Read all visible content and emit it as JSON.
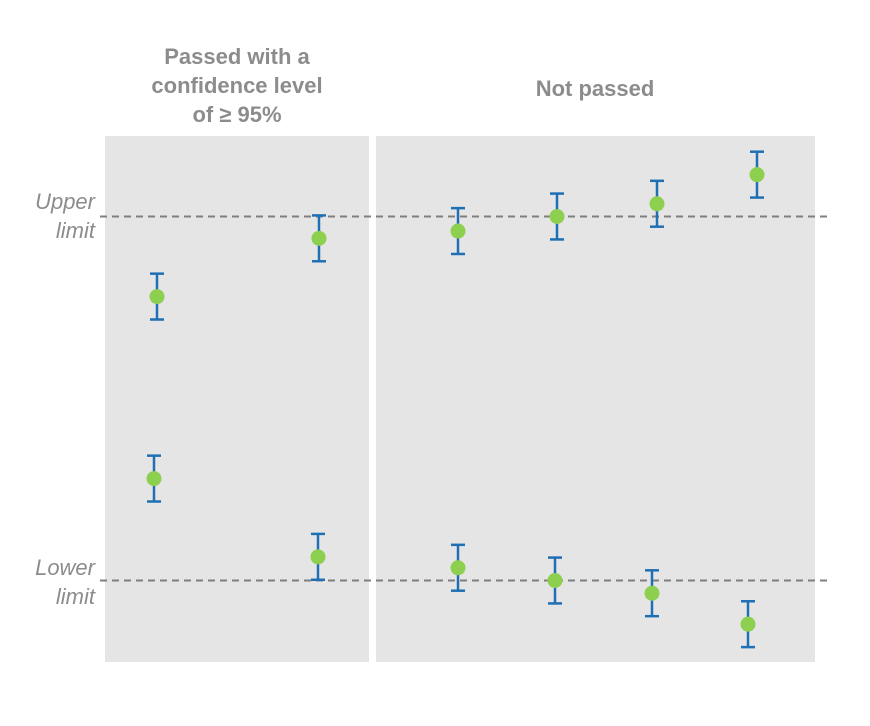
{
  "panels": {
    "left_title": "Passed with a\nconfidence level\nof ≥ 95%",
    "right_title": "Not passed"
  },
  "limits": {
    "upper_label": "Upper\nlimit",
    "lower_label": "Lower\nlimit"
  },
  "colors": {
    "panel_background": "#e6e5e6",
    "limit_line": "#7f7f7f",
    "error_bar": "#1f6fb4",
    "point": "#8dcf4e",
    "text": "#8c8c8c"
  },
  "chart_data": {
    "type": "scatter",
    "description_scale": "y relative: lower limit = 0, upper limit = 1",
    "y_reference": {
      "lower_limit": 0,
      "upper_limit": 1
    },
    "panels": [
      {
        "title": "Passed with a\nconfidence level\nof ≥ 95%",
        "points": [
          {
            "y": 0.78,
            "err": 0.063
          },
          {
            "y": 0.28,
            "err": 0.063
          },
          {
            "y": 0.94,
            "err": 0.063
          },
          {
            "y": 0.065,
            "err": 0.063
          }
        ]
      },
      {
        "title": "Not passed",
        "points": [
          {
            "y": 0.96,
            "err": 0.063
          },
          {
            "y": 1.0,
            "err": 0.063
          },
          {
            "y": 1.035,
            "err": 0.063
          },
          {
            "y": 1.115,
            "err": 0.063
          },
          {
            "y": 0.035,
            "err": 0.063
          },
          {
            "y": 0.0,
            "err": 0.063
          },
          {
            "y": -0.035,
            "err": 0.063
          },
          {
            "y": -0.12,
            "err": 0.063
          }
        ]
      }
    ]
  }
}
